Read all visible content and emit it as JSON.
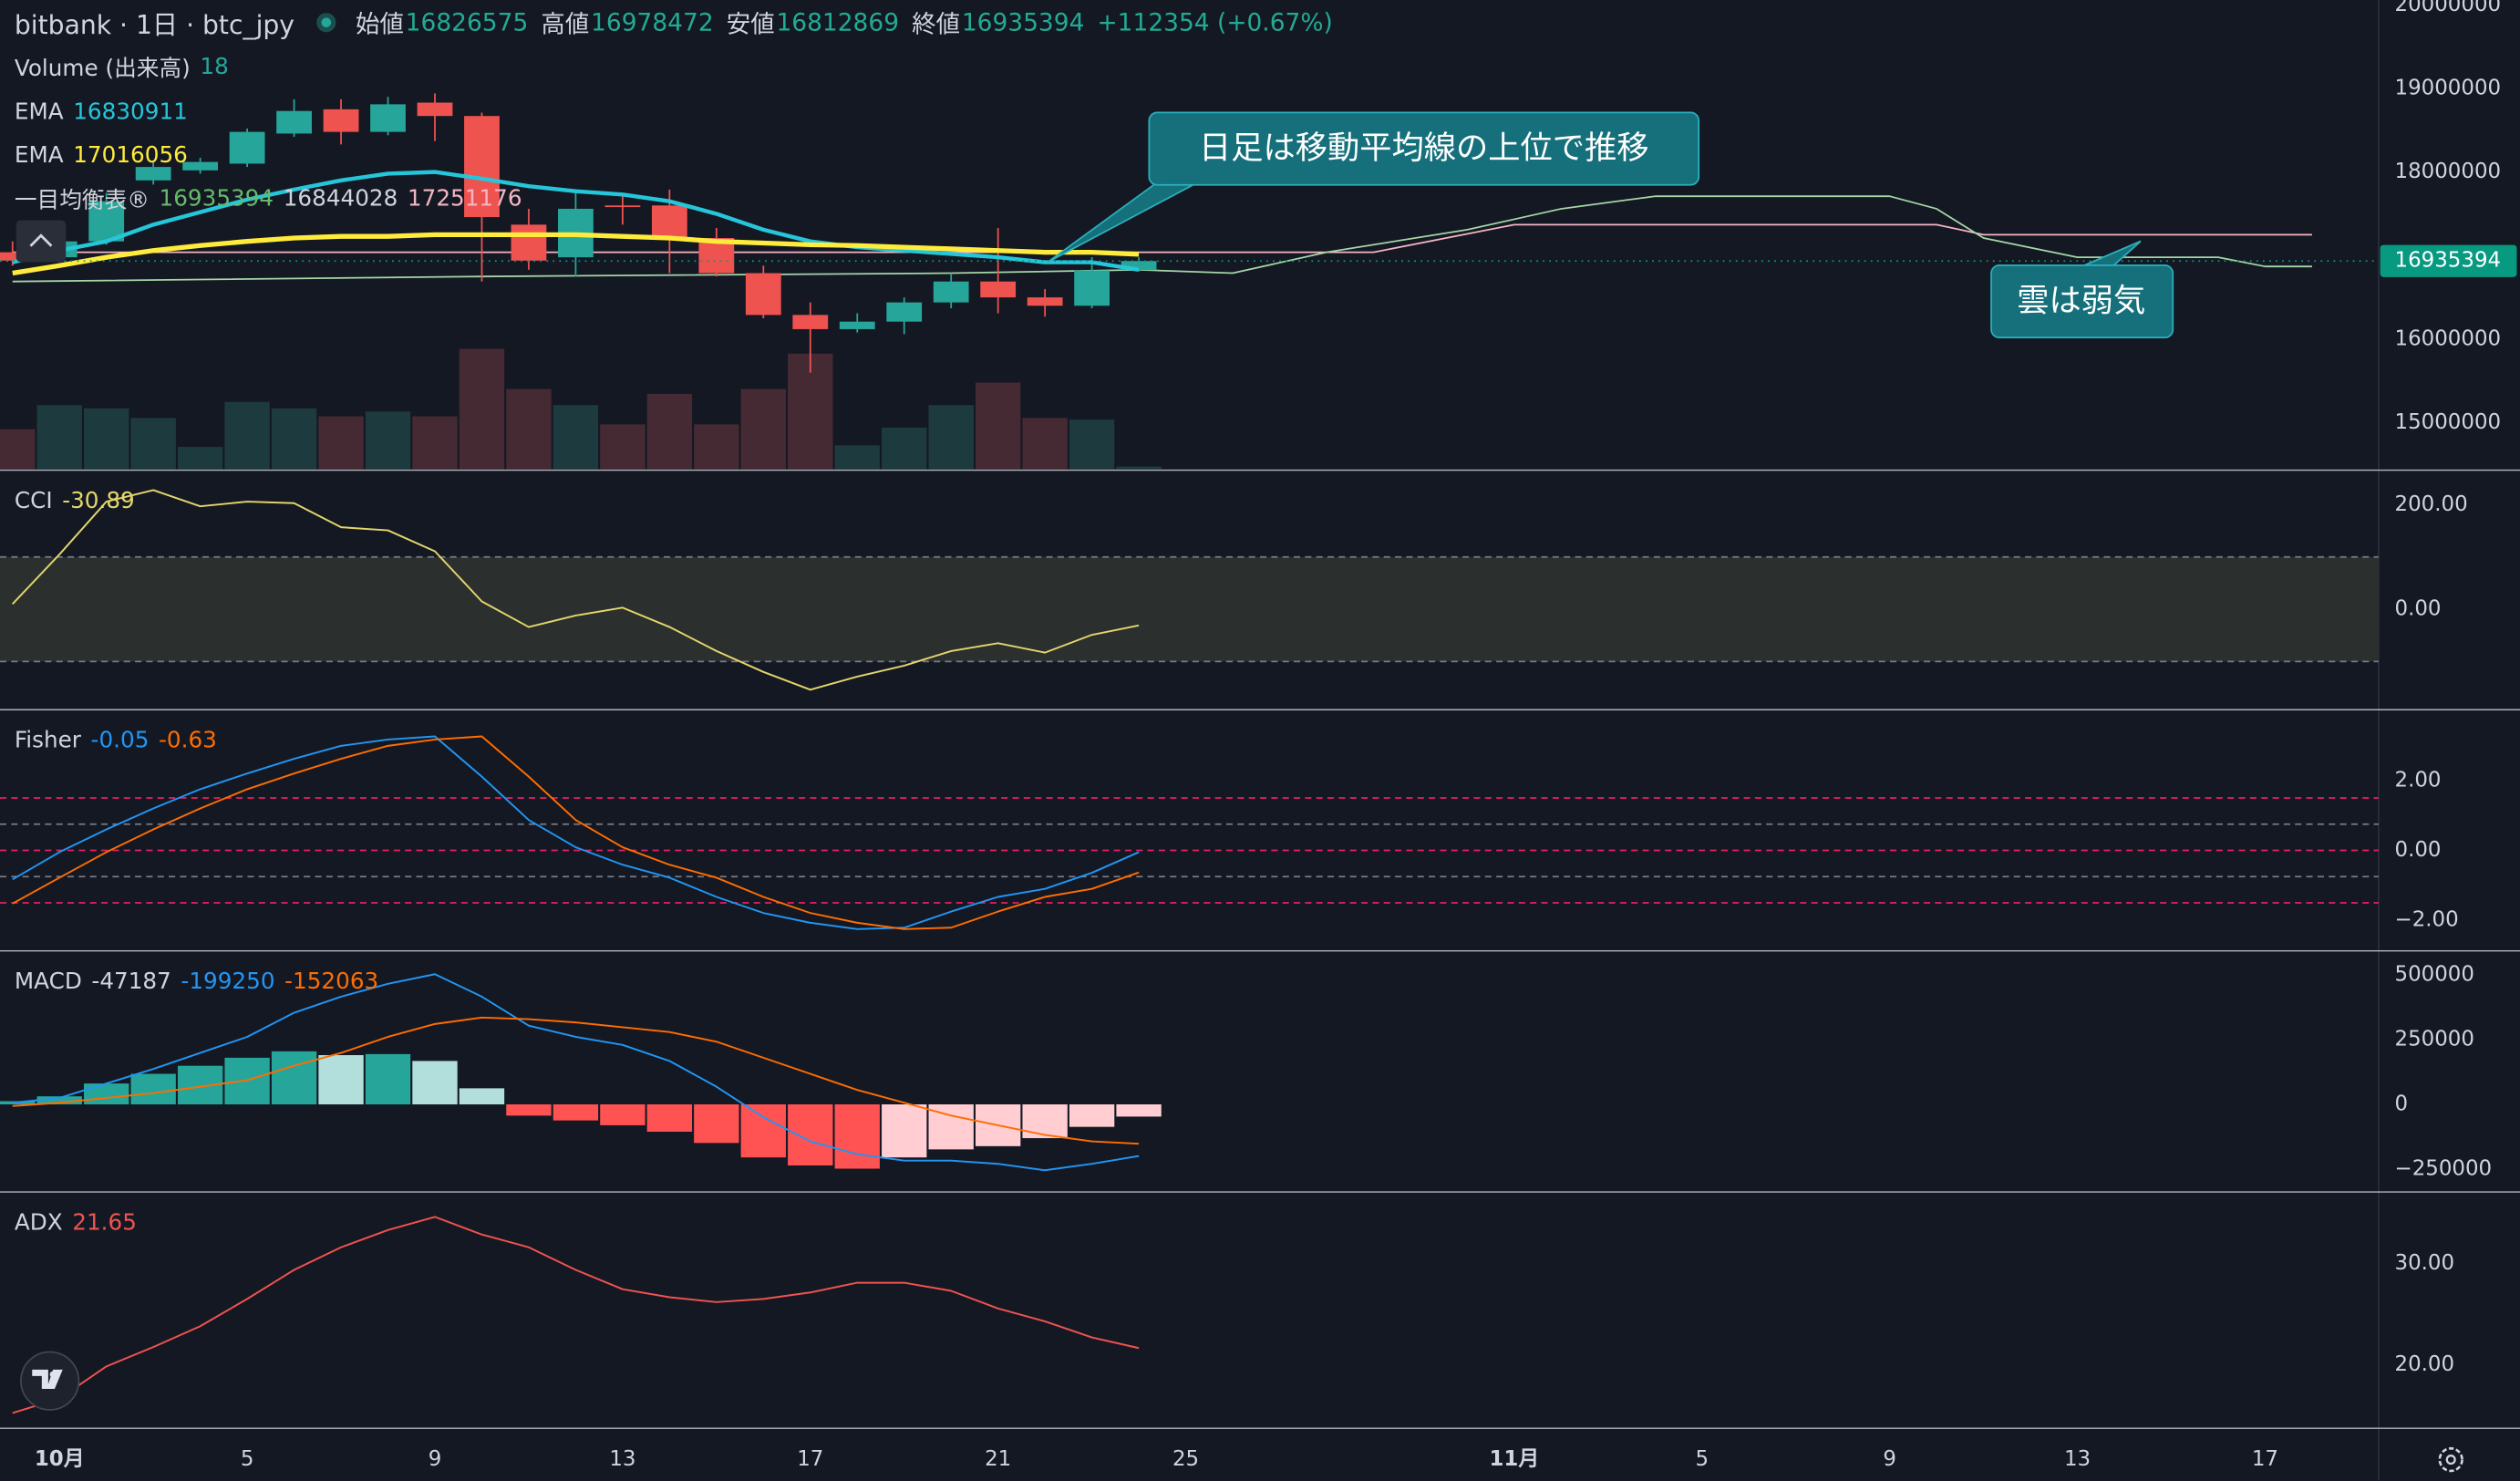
{
  "header": {
    "symbol": "bitbank · 1日 · btc_jpy",
    "open": "始値",
    "high": "高値",
    "low": "安値",
    "close": "終値",
    "change": "+112354 (+0.67%)"
  },
  "chart_data": [
    {
      "type": "candlestick",
      "x": [
        "09-30",
        "10-01",
        "10-02",
        "10-03",
        "10-04",
        "10-05",
        "10-06",
        "10-07",
        "10-08",
        "10-09",
        "10-10",
        "10-11",
        "10-12",
        "10-13",
        "10-14",
        "10-15",
        "10-16",
        "10-17",
        "10-18",
        "10-19",
        "10-20",
        "10-21",
        "10-22",
        "10-23",
        "10-24"
      ],
      "open": [
        17040000,
        16980000,
        17170000,
        17900000,
        18020000,
        18100000,
        18460000,
        18750000,
        18480000,
        18830000,
        18670000,
        17370000,
        16980000,
        17600000,
        17600000,
        17210000,
        16790000,
        16290000,
        16120000,
        16210000,
        16440000,
        16690000,
        16500000,
        16400000,
        16826575
      ],
      "high": [
        17170000,
        17270000,
        17750000,
        18130000,
        18170000,
        18520000,
        18870000,
        18870000,
        18900000,
        18940000,
        18710000,
        17560000,
        17790000,
        17750000,
        17790000,
        17330000,
        16880000,
        16440000,
        16310000,
        16500000,
        16790000,
        17330000,
        16600000,
        16980000,
        16978472
      ],
      "low": [
        16880000,
        16920000,
        17130000,
        17850000,
        17980000,
        18060000,
        18420000,
        18330000,
        18440000,
        18370000,
        16690000,
        16830000,
        16750000,
        17370000,
        16790000,
        16750000,
        16250000,
        15600000,
        16080000,
        16060000,
        16370000,
        16310000,
        16270000,
        16370000,
        16812869
      ],
      "close": [
        16940000,
        17170000,
        17650000,
        18060000,
        18120000,
        18480000,
        18730000,
        18480000,
        18810000,
        18670000,
        17460000,
        16940000,
        17560000,
        17580000,
        17210000,
        16790000,
        16290000,
        16120000,
        16210000,
        16440000,
        16690000,
        16500000,
        16400000,
        16823040,
        16935394
      ],
      "up_color": "#26a69a",
      "down_color": "#ef5350",
      "ylim": [
        14442200,
        20057700
      ],
      "yticks": [
        15000000,
        16000000,
        18000000,
        19000000,
        20000000
      ],
      "xticks": [
        {
          "value": "10-01",
          "label": "10月"
        },
        {
          "value": "10-05",
          "label": "5"
        },
        {
          "value": "10-09",
          "label": "9"
        },
        {
          "value": "10-13",
          "label": "13"
        },
        {
          "value": "10-17",
          "label": "17"
        },
        {
          "value": "10-21",
          "label": "21"
        },
        {
          "value": "10-25",
          "label": "25"
        },
        {
          "value": "11-01",
          "label": "11月"
        },
        {
          "value": "11-05",
          "label": "5"
        },
        {
          "value": "11-09",
          "label": "9"
        },
        {
          "value": "11-13",
          "label": "13"
        },
        {
          "value": "11-17",
          "label": "17"
        }
      ],
      "volume": {
        "name": "Volume (出来高)",
        "values": [
          250,
          400,
          380,
          320,
          140,
          420,
          380,
          330,
          360,
          330,
          750,
          500,
          400,
          280,
          470,
          280,
          500,
          720,
          150,
          260,
          400,
          540,
          320,
          310,
          18
        ],
        "vlim": [
          0,
          2920
        ],
        "up_color": "#1d3b3f",
        "down_color": "#452a33",
        "label_color": "#26a69a"
      },
      "ema": [
        {
          "name": "EMA",
          "color": "#26c6da",
          "values": [
            16920000,
            17060000,
            17170000,
            17370000,
            17520000,
            17670000,
            17790000,
            17900000,
            17980000,
            18000000,
            17920000,
            17830000,
            17770000,
            17730000,
            17650000,
            17500000,
            17310000,
            17170000,
            17100000,
            17060000,
            17020000,
            16980000,
            16920000,
            16920000,
            16830911
          ]
        },
        {
          "name": "EMA",
          "color": "#ffeb3b",
          "values": [
            16790000,
            16880000,
            16980000,
            17060000,
            17120000,
            17170000,
            17210000,
            17230000,
            17230000,
            17250000,
            17250000,
            17250000,
            17250000,
            17230000,
            17210000,
            17170000,
            17150000,
            17130000,
            17120000,
            17100000,
            17080000,
            17060000,
            17040000,
            17040000,
            17016056
          ]
        }
      ],
      "ichimoku": {
        "name": "一目均衡表®",
        "legend_values": [
          16935394,
          16844028,
          17251176
        ],
        "legend_colors": [
          "#66bb6a",
          "#d1d4dc",
          "#f4b6c2"
        ],
        "span_a": {
          "color": "#a5d6a7",
          "x": [
            "09-30",
            "10-10",
            "10-20",
            "10-24",
            "10-26",
            "10-28",
            "10-31",
            "11-02",
            "11-04",
            "11-09",
            "11-10",
            "11-11",
            "11-13",
            "11-16",
            "11-17",
            "11-18"
          ],
          "values": [
            16690000,
            16750000,
            16790000,
            16830000,
            16790000,
            17040000,
            17310000,
            17560000,
            17710000,
            17710000,
            17560000,
            17210000,
            16980000,
            16980000,
            16870000,
            16870000
          ]
        },
        "span_b": {
          "color": "#f4b6c2",
          "x": [
            "09-30",
            "10-29",
            "11-01",
            "11-10",
            "11-11",
            "11-18"
          ],
          "values": [
            17040000,
            17040000,
            17370000,
            17370000,
            17250000,
            17250000
          ]
        }
      },
      "last_price_color": "#089981"
    },
    {
      "type": "line",
      "title": "CCI",
      "x": [
        "09-30",
        "10-01",
        "10-02",
        "10-03",
        "10-04",
        "10-05",
        "10-06",
        "10-07",
        "10-08",
        "10-09",
        "10-10",
        "10-11",
        "10-12",
        "10-13",
        "10-14",
        "10-15",
        "10-16",
        "10-17",
        "10-18",
        "10-19",
        "10-20",
        "10-21",
        "10-22",
        "10-23",
        "10-24"
      ],
      "series": [
        {
          "color": "#e3d66b",
          "values": [
            10,
            105,
            206,
            228,
            197,
            206,
            203,
            157,
            151,
            111,
            15,
            -34,
            -12,
            3,
            -34,
            -80,
            -120,
            -154,
            -129,
            -108,
            -80,
            -65,
            -83,
            -49,
            -30.89
          ]
        }
      ],
      "band": [
        -100,
        100
      ],
      "band_color": "#2b302f",
      "ylim": [
        -190.8,
        264.6
      ],
      "yticks": [
        {
          "value": 200,
          "label": "200.00"
        },
        {
          "value": 0,
          "label": "0.00"
        }
      ]
    },
    {
      "type": "line",
      "title": "Fisher",
      "x": [
        "09-30",
        "10-01",
        "10-02",
        "10-03",
        "10-04",
        "10-05",
        "10-06",
        "10-07",
        "10-08",
        "10-09",
        "10-10",
        "10-11",
        "10-12",
        "10-13",
        "10-14",
        "10-15",
        "10-16",
        "10-17",
        "10-18",
        "10-19",
        "10-20",
        "10-21",
        "10-22",
        "10-23",
        "10-24"
      ],
      "series": [
        {
          "color": "#2196f3",
          "values": [
            -0.83,
            -0.05,
            0.6,
            1.2,
            1.75,
            2.2,
            2.62,
            2.99,
            3.17,
            3.26,
            2.11,
            0.87,
            0.09,
            -0.41,
            -0.78,
            -1.33,
            -1.79,
            -2.07,
            -2.25,
            -2.21,
            -1.75,
            -1.33,
            -1.1,
            -0.64,
            -0.05
          ]
        },
        {
          "color": "#ff6d00",
          "values": [
            -1.52,
            -0.78,
            -0.05,
            0.6,
            1.2,
            1.75,
            2.2,
            2.62,
            2.99,
            3.17,
            3.26,
            2.11,
            0.87,
            0.09,
            -0.41,
            -0.78,
            -1.33,
            -1.79,
            -2.07,
            -2.25,
            -2.21,
            -1.75,
            -1.33,
            -1.1,
            -0.63
          ]
        }
      ],
      "levels": [
        {
          "value": 1.5,
          "color": "#e91e63"
        },
        {
          "value": 0.75,
          "color": "#787b86"
        },
        {
          "value": 0,
          "color": "#e91e63"
        },
        {
          "value": -0.75,
          "color": "#787b86"
        },
        {
          "value": -1.5,
          "color": "#e91e63"
        }
      ],
      "ylim": [
        -2.85,
        4.0
      ],
      "yticks": [
        {
          "value": 2,
          "label": "2.00"
        },
        {
          "value": 0,
          "label": "0.00"
        },
        {
          "value": -2,
          "label": "−2.00"
        }
      ]
    },
    {
      "type": "macd",
      "title": "MACD",
      "x": [
        "09-30",
        "10-01",
        "10-02",
        "10-03",
        "10-04",
        "10-05",
        "10-06",
        "10-07",
        "10-08",
        "10-09",
        "10-10",
        "10-11",
        "10-12",
        "10-13",
        "10-14",
        "10-15",
        "10-16",
        "10-17",
        "10-18",
        "10-19",
        "10-20",
        "10-21",
        "10-22",
        "10-23",
        "10-24"
      ],
      "histogram": {
        "values": [
          12400,
          31000,
          80600,
          117900,
          148900,
          179900,
          204700,
          190000,
          194000,
          167500,
          62000,
          -43400,
          -62000,
          -80600,
          -105500,
          -148900,
          -204700,
          -235700,
          -248100,
          -204700,
          -173700,
          -161300,
          -130300,
          -86800,
          -47187
        ],
        "colors": {
          "pos_up": "#26a69a",
          "pos_down": "#b2dfdb",
          "neg_down": "#ff5252",
          "neg_up": "#ffcdd2"
        },
        "label_color": "#d1d4dc"
      },
      "series": [
        {
          "color": "#2196f3",
          "values": [
            6200,
            24800,
            80600,
            136500,
            198500,
            260500,
            353600,
            415600,
            465200,
            502400,
            415600,
            303900,
            260500,
            229500,
            167500,
            68200,
            -49600,
            -142700,
            -192300,
            -217100,
            -217100,
            -229500,
            -254300,
            -229500,
            -199250
          ]
        },
        {
          "color": "#ff6d00",
          "values": [
            -6200,
            6200,
            24800,
            43400,
            68200,
            93000,
            148900,
            198500,
            260500,
            310200,
            335000,
            328800,
            316400,
            297700,
            279100,
            241900,
            179900,
            117900,
            55800,
            6200,
            -43400,
            -80600,
            -117900,
            -142700,
            -152063
          ]
        }
      ],
      "ylim": [
        -335000,
        589300
      ],
      "yticks": [
        500000,
        250000,
        0,
        {
          "value": -250000,
          "label": "−250000"
        }
      ]
    },
    {
      "type": "line",
      "title": "ADX",
      "x": [
        "09-30",
        "10-01",
        "10-02",
        "10-03",
        "10-04",
        "10-05",
        "10-06",
        "10-07",
        "10-08",
        "10-09",
        "10-10",
        "10-11",
        "10-12",
        "10-13",
        "10-14",
        "10-15",
        "10-16",
        "10-17",
        "10-18",
        "10-19",
        "10-20",
        "10-21",
        "10-22",
        "10-23",
        "10-24"
      ],
      "series": [
        {
          "color": "#f05350",
          "values": [
            15.24,
            16.67,
            19.84,
            21.75,
            23.81,
            26.5,
            29.37,
            31.6,
            33.3,
            34.6,
            32.86,
            31.6,
            29.37,
            27.46,
            26.67,
            26.19,
            26.5,
            27.14,
            28.1,
            28.1,
            27.3,
            25.56,
            24.29,
            22.7,
            21.65
          ]
        }
      ],
      "ylim": [
        13.81,
        36.98
      ],
      "yticks": [
        {
          "value": 30,
          "label": "30.00"
        },
        {
          "value": 20,
          "label": "20.00"
        }
      ]
    }
  ],
  "annotations": [
    {
      "text": "日足は移動平均線の上位で推移"
    },
    {
      "text": "雲は弱気"
    }
  ]
}
